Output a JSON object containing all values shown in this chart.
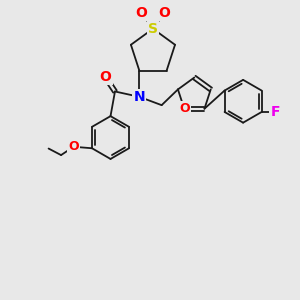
{
  "background_color": "#e8e8e8",
  "atoms": {
    "S": {
      "color": "#cccc00",
      "fontsize": 10
    },
    "O": {
      "color": "#ff0000",
      "fontsize": 10
    },
    "N": {
      "color": "#0000ff",
      "fontsize": 10
    },
    "F": {
      "color": "#ee00ee",
      "fontsize": 10
    }
  },
  "bond_color": "#1a1a1a",
  "bond_width": 1.3,
  "bg": "#e8e8e8"
}
